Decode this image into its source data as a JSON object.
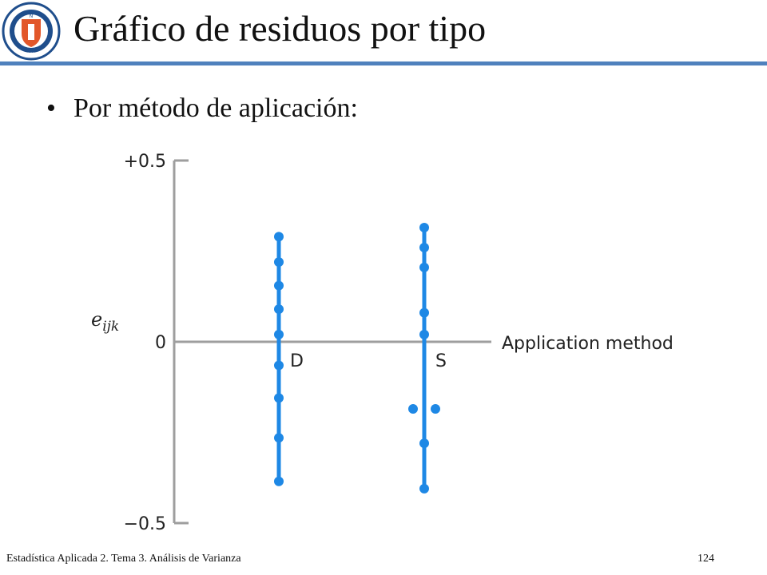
{
  "slide": {
    "title": "Gráfico de residuos por tipo",
    "bullet": "Por método de aplicación:",
    "footer_left": "Estadística Aplicada 2. Tema 3. Análisis de Varianza",
    "page_number": "124",
    "logo_text_top": "UNIVERSIDAD CATÓLICA DEL NORTE",
    "logo_text_bottom": "CHILE",
    "accent_color": "#4f81bd",
    "logo_colors": {
      "ring": "#1f4e8c",
      "shield": "#e2572a"
    }
  },
  "chart_data": {
    "type": "scatter",
    "title": "",
    "xlabel": "Application method",
    "ylabel": "e",
    "ylabel_subscript": "ijk",
    "ylim": [
      -0.5,
      0.5
    ],
    "yticks": [
      "+0.5",
      "0",
      "−0.5"
    ],
    "ytick_values": [
      0.5,
      0,
      -0.5
    ],
    "categories": [
      "D",
      "S"
    ],
    "series": [
      {
        "category": "D",
        "values": [
          0.29,
          0.22,
          0.155,
          0.09,
          0.02,
          -0.065,
          -0.155,
          -0.265,
          -0.385
        ]
      },
      {
        "category": "S",
        "values": [
          0.315,
          0.26,
          0.205,
          0.08,
          0.02,
          -0.185,
          -0.185,
          -0.28,
          -0.405
        ]
      }
    ],
    "marker_color": "#1e88e5",
    "axis_color": "#9e9e9e"
  }
}
